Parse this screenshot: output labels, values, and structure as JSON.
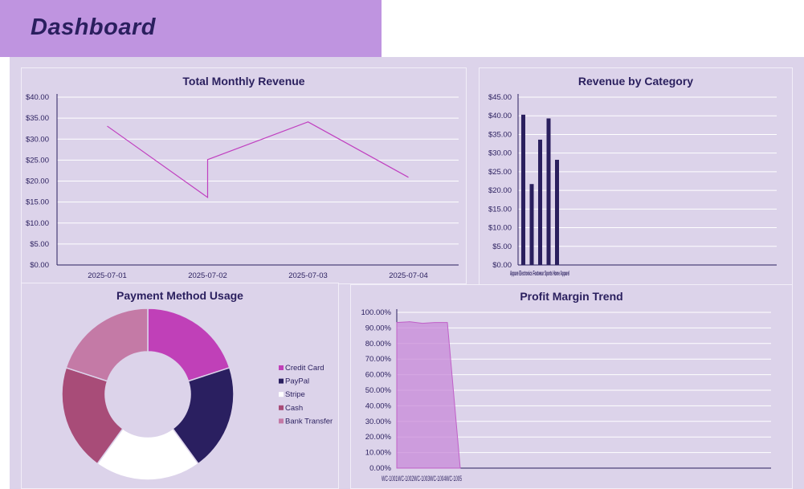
{
  "page": {
    "title": "Dashboard"
  },
  "colors": {
    "background": "#dcd3ea",
    "title_bar": "#bf94e0",
    "title_text": "#2a1f5e",
    "line": "#c040c0",
    "bar": "#2a1f5e",
    "area": "#c88ad8"
  },
  "chart_data": [
    {
      "type": "line",
      "title": "Total Monthly Revenue",
      "categories": [
        "2025-07-01",
        "2025-07-02",
        "2025-07-03",
        "2025-07-04"
      ],
      "y_ticks": [
        "$0.00",
        "$5.00",
        "$10.00",
        "$15.00",
        "$20.00",
        "$25.00",
        "$30.00",
        "$35.00",
        "$40.00"
      ],
      "ylim": [
        0,
        40
      ],
      "series": [
        {
          "x": [
            0,
            1,
            1,
            2,
            3
          ],
          "values": [
            33.1,
            16.1,
            25.1,
            34.1,
            20.9
          ]
        }
      ],
      "grid": true
    },
    {
      "type": "bar",
      "title": "Revenue by Category",
      "categories_label_visible": "Appare Electronics Footwear Sports Home Apparel",
      "categories": [
        "",
        "",
        "",
        "",
        ""
      ],
      "values": [
        40.3,
        21.7,
        33.6,
        39.3,
        28.2
      ],
      "y_ticks": [
        "$0.00",
        "$5.00",
        "$10.00",
        "$15.00",
        "$20.00",
        "$25.00",
        "$30.00",
        "$35.00",
        "$40.00",
        "$45.00"
      ],
      "ylim": [
        0,
        45
      ],
      "grid": true
    },
    {
      "type": "pie",
      "title": "Payment Method Usage",
      "donut": true,
      "legend_position": "right",
      "labels": [
        "Credit Card",
        "PayPal",
        "Stripe",
        "Cash",
        "Bank Transfer"
      ],
      "values": [
        20,
        20,
        20,
        20,
        20
      ],
      "colors": [
        "#c040b8",
        "#2a1f60",
        "#ffffff",
        "#a84c78",
        "#c47aa6"
      ]
    },
    {
      "type": "area",
      "title": "Profit Margin Trend",
      "x_tick_text": "WC-1001WC-1002WC-1003WC-1004WC-1005",
      "y_ticks": [
        "0.00%",
        "10.00%",
        "20.00%",
        "30.00%",
        "40.00%",
        "50.00%",
        "60.00%",
        "70.00%",
        "80.00%",
        "90.00%",
        "100.00%"
      ],
      "ylim": [
        0,
        100
      ],
      "values": [
        93.5,
        94.0,
        93.0,
        93.5,
        93.5,
        0
      ],
      "grid": true
    }
  ]
}
